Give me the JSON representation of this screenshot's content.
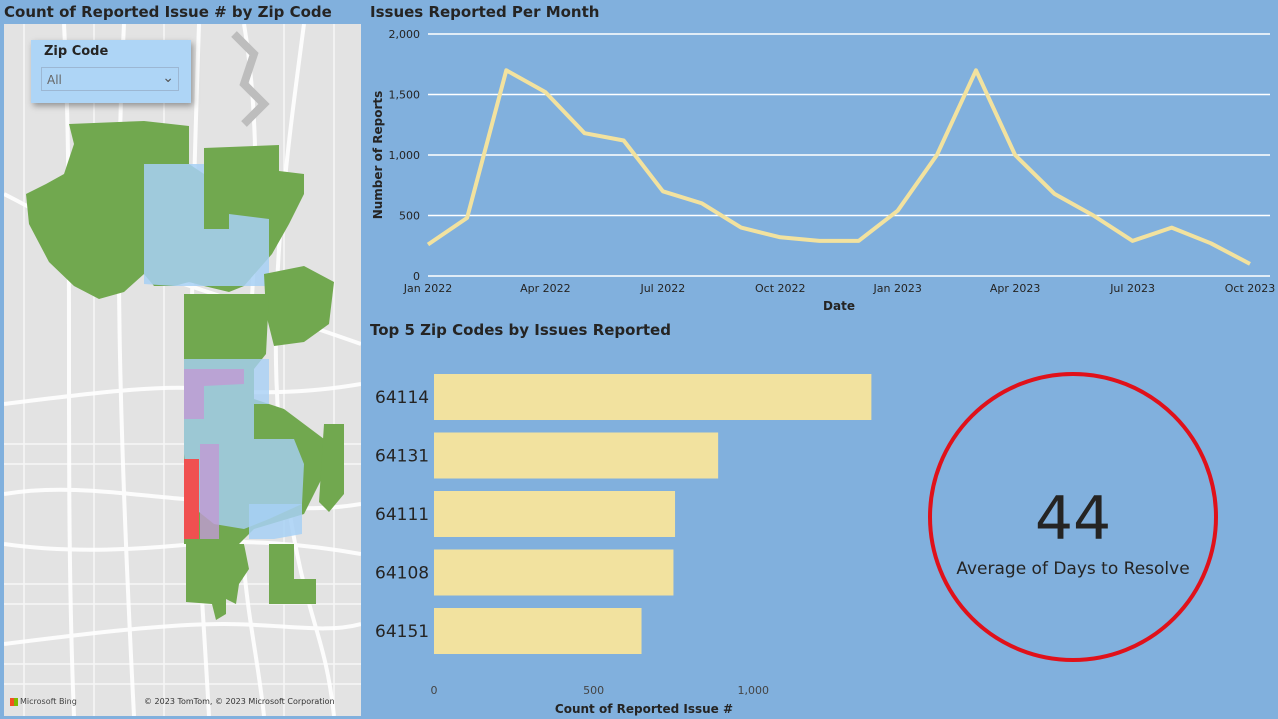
{
  "map_panel": {
    "title": "Count of Reported Issue # by Zip Code",
    "slicer_label": "Zip Code",
    "slicer_value": "All",
    "bing_label": "Microsoft Bing",
    "copyright": "© 2023 TomTom, © 2023 Microsoft Corporation",
    "colors": {
      "green": "#71a84f",
      "light_blue": "#a7d0f5",
      "red": "#f05050",
      "purple": "#c29ad3"
    }
  },
  "kpi": {
    "value": "44",
    "label": "Average of Days to Resolve",
    "ring_color": "#e0111a"
  },
  "chart_data": [
    {
      "type": "line",
      "title": "Issues Reported Per Month",
      "xlabel": "Date",
      "ylabel": "Number of Reports",
      "ylim": [
        0,
        2000
      ],
      "yticks": [
        0,
        500,
        1000,
        1500,
        2000
      ],
      "ytick_labels": [
        "0",
        "500",
        "1,000",
        "1,500",
        "2,000"
      ],
      "xticks": [
        "2022-01",
        "2022-04",
        "2022-07",
        "2022-10",
        "2023-01",
        "2023-04",
        "2023-07",
        "2023-10"
      ],
      "xtick_labels": [
        "Jan 2022",
        "Apr 2022",
        "Jul 2022",
        "Oct 2022",
        "Jan 2023",
        "Apr 2023",
        "Jul 2023",
        "Oct 2023"
      ],
      "grid": true,
      "line_color": "#f2e29f",
      "x": [
        "2022-01",
        "2022-02",
        "2022-03",
        "2022-04",
        "2022-05",
        "2022-06",
        "2022-07",
        "2022-08",
        "2022-09",
        "2022-10",
        "2022-11",
        "2022-12",
        "2023-01",
        "2023-02",
        "2023-03",
        "2023-04",
        "2023-05",
        "2023-06",
        "2023-07",
        "2023-08",
        "2023-09",
        "2023-10"
      ],
      "values": [
        260,
        480,
        1700,
        1520,
        1180,
        1120,
        700,
        600,
        400,
        320,
        290,
        290,
        540,
        1000,
        1700,
        1000,
        680,
        500,
        290,
        400,
        270,
        100
      ]
    },
    {
      "type": "bar",
      "orientation": "horizontal",
      "title": "Top 5 Zip Codes by Issues Reported",
      "xlabel": "Count of Reported Issue #",
      "ylabel": "",
      "xlim": [
        0,
        1350
      ],
      "xticks": [
        0,
        500,
        1000
      ],
      "xtick_labels": [
        "0",
        "500",
        "1,000"
      ],
      "bar_color": "#f2e29f",
      "categories": [
        "64114",
        "64131",
        "64111",
        "64108",
        "64151"
      ],
      "values": [
        1370,
        890,
        755,
        750,
        650
      ]
    }
  ]
}
